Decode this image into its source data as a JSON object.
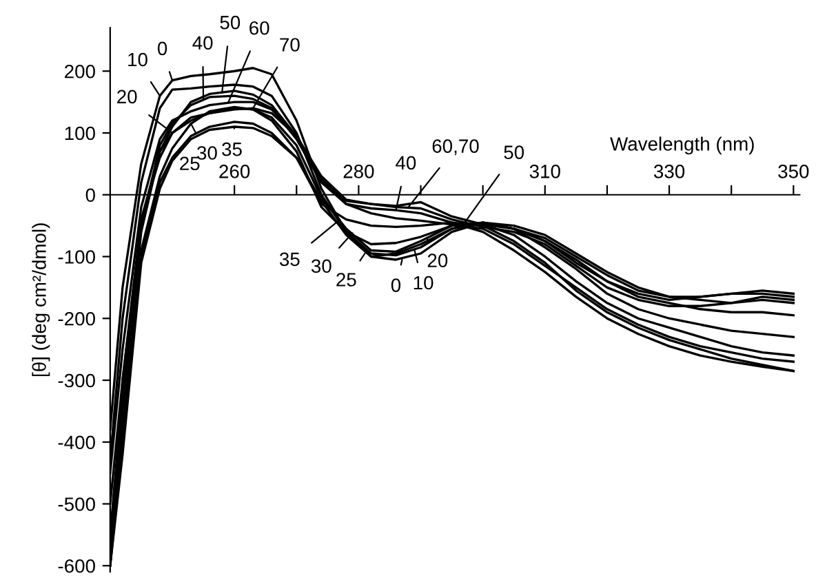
{
  "chart_data": {
    "type": "line",
    "xlabel": "Wavelength (nm)",
    "ylabel": "[θ] (deg cm²/dmol)",
    "x": [
      240,
      242,
      245,
      248,
      250,
      253,
      256,
      260,
      263,
      266,
      270,
      274,
      278,
      282,
      286,
      290,
      295,
      300,
      305,
      310,
      315,
      320,
      325,
      330,
      335,
      340,
      345,
      350
    ],
    "series": [
      {
        "color": "#000000",
        "values": [
          -380,
          -150,
          50,
          160,
          185,
          192,
          195,
          200,
          205,
          195,
          120,
          10,
          -60,
          -100,
          -105,
          -95,
          -60,
          -45,
          -55,
          -70,
          -100,
          -130,
          -155,
          -165,
          -165,
          -160,
          -160,
          -165
        ]
      },
      {
        "color": "#000000",
        "values": [
          -430,
          -200,
          20,
          140,
          170,
          172,
          175,
          178,
          175,
          160,
          100,
          0,
          -60,
          -95,
          -98,
          -85,
          -55,
          -45,
          -50,
          -65,
          -95,
          -125,
          -150,
          -165,
          -170,
          -175,
          -170,
          -175
        ]
      },
      {
        "color": "#000000",
        "values": [
          -600,
          -300,
          -40,
          60,
          100,
          125,
          132,
          140,
          138,
          125,
          80,
          -5,
          -55,
          -90,
          -92,
          -75,
          -50,
          -45,
          -55,
          -75,
          -105,
          -140,
          -165,
          -175,
          -185,
          -190,
          -190,
          -195
        ]
      },
      {
        "color": "#000000",
        "values": [
          -600,
          -400,
          -100,
          20,
          60,
          95,
          110,
          118,
          115,
          100,
          60,
          -10,
          -65,
          -100,
          -95,
          -80,
          -55,
          -45,
          -55,
          -85,
          -120,
          -160,
          -185,
          -200,
          -210,
          -220,
          -225,
          -230
        ]
      },
      {
        "color": "#000000",
        "values": [
          -560,
          -380,
          -90,
          30,
          75,
          115,
          135,
          142,
          138,
          120,
          70,
          -20,
          -60,
          -80,
          -78,
          -68,
          -50,
          -48,
          -65,
          -100,
          -140,
          -175,
          -200,
          -215,
          -230,
          -245,
          -255,
          -260
        ]
      },
      {
        "color": "#000000",
        "values": [
          -600,
          -420,
          -110,
          10,
          55,
          90,
          105,
          110,
          108,
          95,
          60,
          -15,
          -40,
          -50,
          -52,
          -50,
          -45,
          -50,
          -75,
          -110,
          -155,
          -190,
          -215,
          -235,
          -250,
          -265,
          -275,
          -285
        ]
      },
      {
        "color": "#000000",
        "values": [
          -500,
          -300,
          -50,
          80,
          115,
          145,
          158,
          160,
          155,
          140,
          90,
          20,
          -15,
          -22,
          -25,
          -30,
          -45,
          -60,
          -90,
          -125,
          -165,
          -200,
          -225,
          -245,
          -260,
          -270,
          -278,
          -285
        ]
      },
      {
        "color": "#000000",
        "values": [
          -600,
          -350,
          -60,
          70,
          110,
          150,
          163,
          168,
          162,
          145,
          95,
          25,
          -15,
          -30,
          -38,
          -42,
          -48,
          -55,
          -80,
          -115,
          -150,
          -185,
          -210,
          -230,
          -245,
          -255,
          -265,
          -270
        ]
      },
      {
        "color": "#000000",
        "values": [
          -450,
          -250,
          -20,
          90,
          120,
          135,
          145,
          150,
          150,
          138,
          95,
          25,
          -10,
          -15,
          -20,
          -22,
          -40,
          -52,
          -60,
          -80,
          -115,
          -150,
          -170,
          -180,
          -180,
          -175,
          -165,
          -170
        ]
      },
      {
        "color": "#000000",
        "values": [
          -550,
          -320,
          -40,
          70,
          100,
          120,
          132,
          138,
          140,
          132,
          95,
          30,
          -8,
          -15,
          -18,
          -12,
          -35,
          -48,
          -55,
          -75,
          -110,
          -140,
          -160,
          -170,
          -165,
          -160,
          -155,
          -160
        ]
      }
    ],
    "annotations": [
      {
        "text": "10",
        "x": 248,
        "y": 160
      },
      {
        "text": "0",
        "x": 250,
        "y": 185
      },
      {
        "text": "20",
        "x": 250,
        "y": 100
      },
      {
        "text": "40",
        "x": 255,
        "y": 154
      },
      {
        "text": "50",
        "x": 258,
        "y": 165
      },
      {
        "text": "60",
        "x": 259,
        "y": 149
      },
      {
        "text": "70",
        "x": 263,
        "y": 140
      },
      {
        "text": "30",
        "x": 253,
        "y": 115
      },
      {
        "text": "35",
        "x": 260,
        "y": 110
      },
      {
        "text": "25",
        "x": 251,
        "y": 72
      },
      {
        "text": "35",
        "x": 277,
        "y": -40
      },
      {
        "text": "30",
        "x": 279,
        "y": -62
      },
      {
        "text": "25",
        "x": 281,
        "y": -95
      },
      {
        "text": "0",
        "x": 287,
        "y": -105
      },
      {
        "text": "10",
        "x": 289,
        "y": -90
      },
      {
        "text": "20",
        "x": 291,
        "y": -70
      },
      {
        "text": "40",
        "x": 286,
        "y": -25
      },
      {
        "text": "60,70",
        "x": 288,
        "y": -20
      },
      {
        "text": "50",
        "x": 297,
        "y": -46
      }
    ],
    "xlim": [
      240,
      351
    ],
    "ylim": [
      -610,
      270
    ],
    "xticks": [
      260,
      {
        "value": 270,
        "label": null
      },
      280,
      {
        "value": 290,
        "label": null
      },
      {
        "value": 300,
        "label": null
      },
      310,
      {
        "value": 320,
        "label": null
      },
      330,
      {
        "value": 340,
        "label": null
      },
      350
    ],
    "yticks": [
      -600,
      -500,
      -400,
      -300,
      -200,
      -100,
      0,
      100,
      200
    ],
    "grid": false,
    "legend": false,
    "marker": "none",
    "line_style": "solid"
  }
}
